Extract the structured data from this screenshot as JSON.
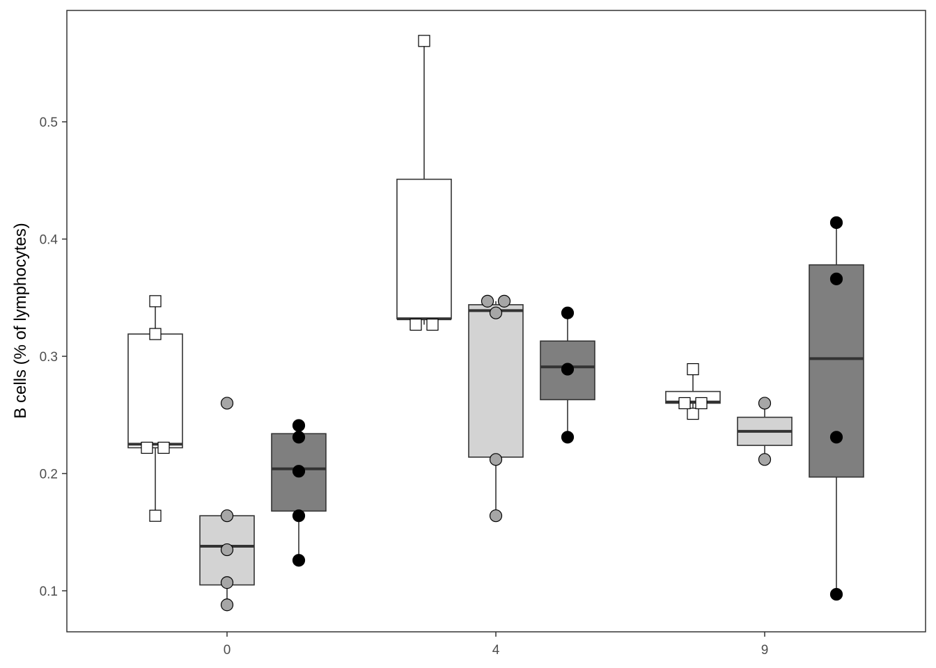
{
  "chart_data": {
    "type": "box",
    "title": "",
    "xlabel": "",
    "ylabel": "B cells (% of lymphocytes)",
    "categories": [
      "0",
      "4",
      "9"
    ],
    "ylim": [
      0.065,
      0.595
    ],
    "yticks": [
      {
        "value": 0.1,
        "label": "0.1"
      },
      {
        "value": 0.2,
        "label": "0.2"
      },
      {
        "value": 0.3,
        "label": "0.3"
      },
      {
        "value": 0.4,
        "label": "0.4"
      },
      {
        "value": 0.5,
        "label": "0.5"
      }
    ],
    "grid": false,
    "legend": "none",
    "series": [
      {
        "fill": "#ffffff",
        "marker": "square",
        "marker_fill": "#ffffff",
        "boxes": [
          {
            "category": "0",
            "min": 0.164,
            "q1": 0.222,
            "median": 0.225,
            "q3": 0.319,
            "max": 0.347,
            "points": [
              0.164,
              0.222,
              0.222,
              0.319,
              0.347
            ]
          },
          {
            "category": "4",
            "min": 0.327,
            "q1": 0.332,
            "median": 0.332,
            "q3": 0.451,
            "max": 0.569,
            "points": [
              0.327,
              0.327,
              0.569
            ]
          },
          {
            "category": "9",
            "min": 0.251,
            "q1": 0.26,
            "median": 0.261,
            "q3": 0.27,
            "max": 0.289,
            "points": [
              0.251,
              0.26,
              0.26,
              0.289
            ]
          }
        ]
      },
      {
        "fill": "#d3d3d3",
        "marker": "circle",
        "marker_fill": "#a6a6a6",
        "boxes": [
          {
            "category": "0",
            "min": 0.088,
            "q1": 0.105,
            "median": 0.138,
            "q3": 0.164,
            "max": 0.164,
            "points": [
              0.088,
              0.107,
              0.135,
              0.164,
              0.26
            ]
          },
          {
            "category": "4",
            "min": 0.164,
            "q1": 0.214,
            "median": 0.339,
            "q3": 0.344,
            "max": 0.347,
            "points": [
              0.164,
              0.212,
              0.337,
              0.347,
              0.347
            ]
          },
          {
            "category": "9",
            "min": 0.212,
            "q1": 0.224,
            "median": 0.236,
            "q3": 0.248,
            "max": 0.26,
            "points": [
              0.212,
              0.26
            ]
          }
        ]
      },
      {
        "fill": "#7f7f7f",
        "marker": "circle",
        "marker_fill": "#000000",
        "boxes": [
          {
            "category": "0",
            "min": 0.126,
            "q1": 0.168,
            "median": 0.204,
            "q3": 0.234,
            "max": 0.241,
            "points": [
              0.126,
              0.164,
              0.202,
              0.231,
              0.241
            ]
          },
          {
            "category": "4",
            "min": 0.231,
            "q1": 0.263,
            "median": 0.291,
            "q3": 0.313,
            "max": 0.337,
            "points": [
              0.231,
              0.289,
              0.337
            ]
          },
          {
            "category": "9",
            "min": 0.097,
            "q1": 0.197,
            "median": 0.298,
            "q3": 0.378,
            "max": 0.414,
            "points": [
              0.097,
              0.231,
              0.366,
              0.414
            ]
          }
        ]
      }
    ]
  }
}
